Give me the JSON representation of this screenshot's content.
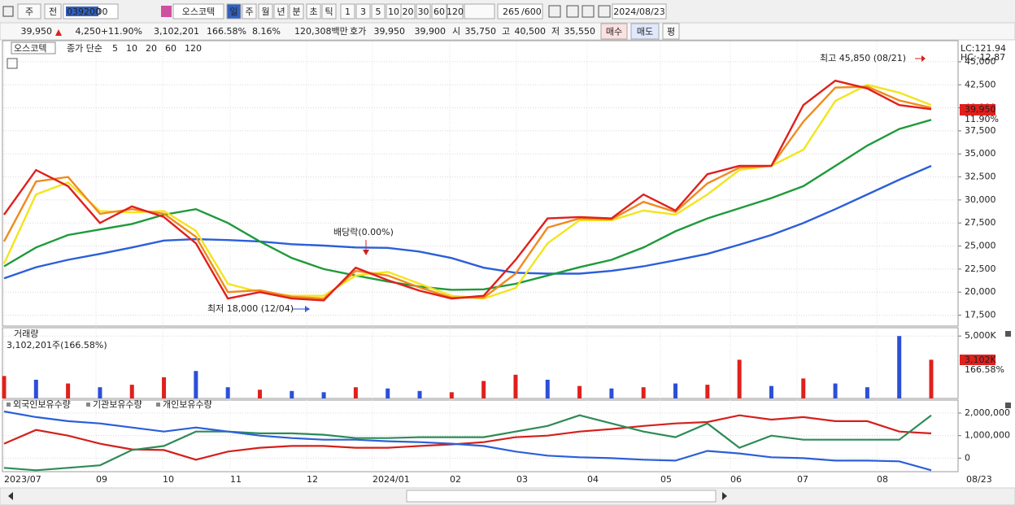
{
  "toolbar": {
    "period": "주",
    "prev": "전",
    "code": "039200",
    "name": "오스코텍",
    "intervals": [
      "일",
      "주",
      "월",
      "년",
      "분",
      "초",
      "틱"
    ],
    "steps": [
      "1",
      "3",
      "5",
      "10",
      "20",
      "30",
      "60",
      "120"
    ],
    "count": "265",
    "count_max": "/600",
    "date": "2024/08/23"
  },
  "quote": {
    "price": "39,950",
    "change": "4,250",
    "change_pct": "+11.90%",
    "volume": "3,102,201",
    "volume_pct": "166.58%",
    "turnover_pct": "8.16%",
    "amount": "120,308백만",
    "ask_label": "호가",
    "ask": "39,950",
    "bid": "39,900",
    "open_label": "시",
    "open": "35,750",
    "high_label": "고",
    "high": "40,500",
    "low_label": "저",
    "low": "35,550",
    "buy": "매수",
    "sell": "매도",
    "avg": "평"
  },
  "price_panel": {
    "type": "line",
    "title": "오스코텍",
    "ma_label": "종가 단순",
    "ylim": [
      16400,
      47200
    ],
    "yticks": [
      {
        "value": 45000,
        "label": "45,000"
      },
      {
        "value": 42500,
        "label": "42,500"
      },
      {
        "value": 40000,
        "label": "40,000"
      },
      {
        "value": 37500,
        "label": "37,500"
      },
      {
        "value": 35000,
        "label": "35,000"
      },
      {
        "value": 32500,
        "label": "32,500"
      },
      {
        "value": 30000,
        "label": "30,000"
      },
      {
        "value": 27500,
        "label": "27,500"
      },
      {
        "value": 25000,
        "label": "25,000"
      },
      {
        "value": 22500,
        "label": "22,500"
      },
      {
        "value": 20000,
        "label": "20,000"
      },
      {
        "value": 17500,
        "label": "17,500"
      }
    ],
    "series": [
      {
        "name": "120",
        "color": "#2b5fd9",
        "values": [
          21500,
          22700,
          23500,
          24150,
          24850,
          25600,
          25750,
          25650,
          25500,
          25200,
          25050,
          24850,
          24800,
          24400,
          23700,
          22650,
          22100,
          22000,
          22000,
          22300,
          22800,
          23450,
          24150,
          25150,
          26200,
          27500,
          29000,
          30600,
          32200,
          33700
        ]
      },
      {
        "name": "60",
        "color": "#1e9a3a",
        "values": [
          22800,
          24850,
          26200,
          26800,
          27400,
          28400,
          29000,
          27500,
          25500,
          23700,
          22500,
          21800,
          21150,
          20600,
          20250,
          20300,
          20900,
          21800,
          22700,
          23500,
          24850,
          26600,
          28000,
          29100,
          30200,
          31500,
          33700,
          35900,
          37700,
          38700
        ]
      },
      {
        "name": "20",
        "color": "#f2e51c",
        "values": [
          23100,
          30600,
          31900,
          28800,
          28650,
          28800,
          26650,
          20900,
          20000,
          19600,
          19600,
          21800,
          22200,
          20900,
          19600,
          19300,
          20450,
          25300,
          27800,
          27800,
          28850,
          28400,
          30600,
          33250,
          33700,
          35450,
          40750,
          42500,
          41650,
          40300
        ]
      },
      {
        "name": "10",
        "color": "#f08a1c",
        "values": [
          25500,
          32000,
          32500,
          28500,
          29000,
          28500,
          26000,
          20000,
          20200,
          19500,
          19300,
          22300,
          21800,
          20500,
          19400,
          19400,
          22000,
          27000,
          28000,
          27900,
          29800,
          28700,
          31800,
          33500,
          33700,
          38500,
          42200,
          42300,
          40800,
          40000
        ]
      },
      {
        "name": "5",
        "color": "#e0201c",
        "values": [
          28400,
          33250,
          31500,
          27500,
          29300,
          28150,
          25300,
          19300,
          20000,
          19300,
          19100,
          22650,
          21300,
          20150,
          19300,
          19600,
          23500,
          28000,
          28150,
          28000,
          30600,
          28850,
          32800,
          33700,
          33700,
          40300,
          42950,
          42100,
          40300,
          39850
        ]
      }
    ],
    "high_note": "최고 45,850 (08/21)",
    "low_note": "최저 18,000 (12/04)",
    "dividend_note": "배당락(0.00%)",
    "lc": "LC:121.94",
    "hc": "HC:-12.87",
    "last_price": "39,950",
    "last_pct": "11.90%"
  },
  "volume_panel": {
    "type": "bar",
    "title": "거래량",
    "summary": "3,102,201주(166.58%)",
    "ylim": [
      0,
      5600
    ],
    "yticks": [
      {
        "value": 5000,
        "label": "5,000K"
      }
    ],
    "values": [
      1800,
      1500,
      1200,
      900,
      1100,
      1700,
      2200,
      900,
      700,
      600,
      500,
      900,
      800,
      600,
      500,
      1400,
      1900,
      1500,
      1000,
      800,
      900,
      1200,
      1100,
      3100,
      1000,
      1600,
      1200,
      900,
      5000,
      3102
    ],
    "colors": [
      "#e0201c",
      "#2b4fd9",
      "#e0201c",
      "#2b4fd9",
      "#e0201c",
      "#e0201c",
      "#2b4fd9",
      "#2b4fd9",
      "#e0201c",
      "#2b4fd9",
      "#2b4fd9",
      "#e0201c",
      "#2b4fd9",
      "#2b4fd9",
      "#e0201c",
      "#e0201c",
      "#e0201c",
      "#2b4fd9",
      "#e0201c",
      "#2b4fd9",
      "#e0201c",
      "#2b4fd9",
      "#e0201c",
      "#e0201c",
      "#2b4fd9",
      "#e0201c",
      "#2b4fd9",
      "#2b4fd9",
      "#2b4fd9",
      "#e0201c"
    ],
    "last_value": "3,102K",
    "last_pct": "166.58%"
  },
  "holding_panel": {
    "type": "line",
    "ylim": [
      -600000,
      2540000
    ],
    "yticks": [
      {
        "value": 2000000,
        "label": "2,000,000"
      },
      {
        "value": 1000000,
        "label": "1,000,000"
      },
      0
    ],
    "series": [
      {
        "name": "외국인보유수량",
        "color": "#d4201c",
        "values": [
          640000,
          1250000,
          1000000,
          640000,
          390000,
          360000,
          -70000,
          290000,
          460000,
          540000,
          540000,
          460000,
          460000,
          540000,
          610000,
          710000,
          930000,
          1000000,
          1180000,
          1290000,
          1430000,
          1540000,
          1600000,
          1900000,
          1710000,
          1820000,
          1640000,
          1640000,
          1180000,
          1100000
        ]
      },
      {
        "name": "기관보유수량",
        "color": "#2e8b57",
        "values": [
          -430000,
          -540000,
          -430000,
          -320000,
          360000,
          540000,
          1180000,
          1180000,
          1100000,
          1100000,
          1040000,
          890000,
          890000,
          930000,
          930000,
          930000,
          1180000,
          1430000,
          1900000,
          1540000,
          1180000,
          930000,
          1540000,
          460000,
          1000000,
          820000,
          820000,
          820000,
          820000,
          1900000
        ]
      },
      {
        "name": "개인보유수량",
        "color": "#2b5fd9",
        "values": [
          2070000,
          1820000,
          1640000,
          1540000,
          1360000,
          1180000,
          1360000,
          1180000,
          1000000,
          890000,
          820000,
          820000,
          750000,
          710000,
          640000,
          540000,
          290000,
          110000,
          40000,
          0,
          -70000,
          -110000,
          320000,
          210000,
          40000,
          0,
          -110000,
          -110000,
          -140000,
          -540000
        ]
      }
    ]
  },
  "dates": [
    "2023/07",
    "09",
    "10",
    "11",
    "12",
    "2024/01",
    "02",
    "03",
    "04",
    "05",
    "06",
    "07",
    "08"
  ],
  "last_date": "08/23"
}
